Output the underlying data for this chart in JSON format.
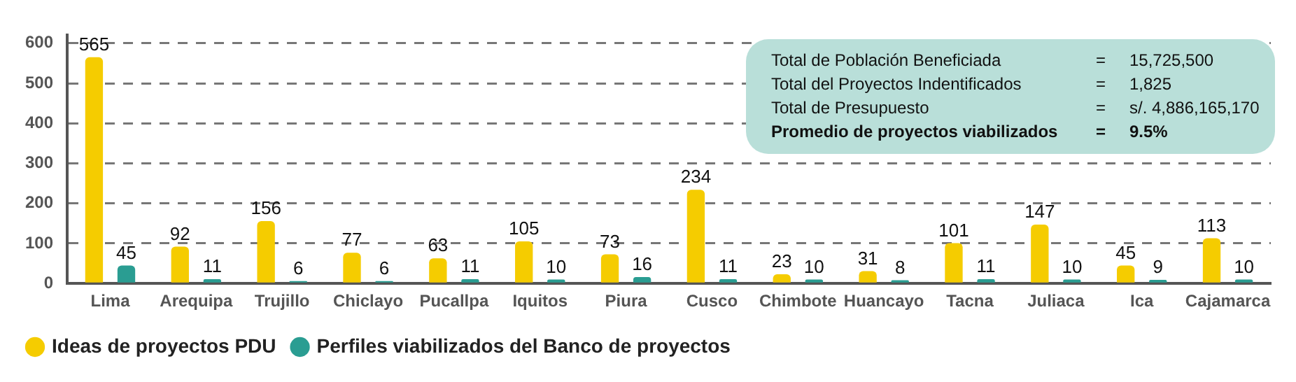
{
  "chart_data": {
    "type": "bar",
    "categories": [
      "Lima",
      "Arequipa",
      "Trujillo",
      "Chiclayo",
      "Pucallpa",
      "Iquitos",
      "Piura",
      "Cusco",
      "Chimbote",
      "Huancayo",
      "Tacna",
      "Juliaca",
      "Ica",
      "Cajamarca"
    ],
    "series": [
      {
        "name": "Ideas de proyectos PDU",
        "color": "#f5cc00",
        "values": [
          565,
          92,
          156,
          77,
          63,
          105,
          73,
          234,
          23,
          31,
          101,
          147,
          45,
          113
        ]
      },
      {
        "name": "Perfiles viabilizados del Banco de proyectos",
        "color": "#2a9d92",
        "values": [
          45,
          11,
          6,
          6,
          11,
          10,
          16,
          11,
          10,
          8,
          11,
          10,
          9,
          10
        ]
      }
    ],
    "ylim": [
      0,
      620
    ],
    "yticks": [
      0,
      100,
      200,
      300,
      400,
      500,
      600
    ],
    "grid": "y",
    "legend": "bottom",
    "data_labels": true,
    "annotations": [
      "Total de Población Beneficiada = 15,725,500",
      "Total del Proyectos Indentificados = 1,825",
      "Total de Presupuesto = s/. 4,886,165,170",
      "Promedio de proyectos viabilizados = 9.5%"
    ]
  }
}
